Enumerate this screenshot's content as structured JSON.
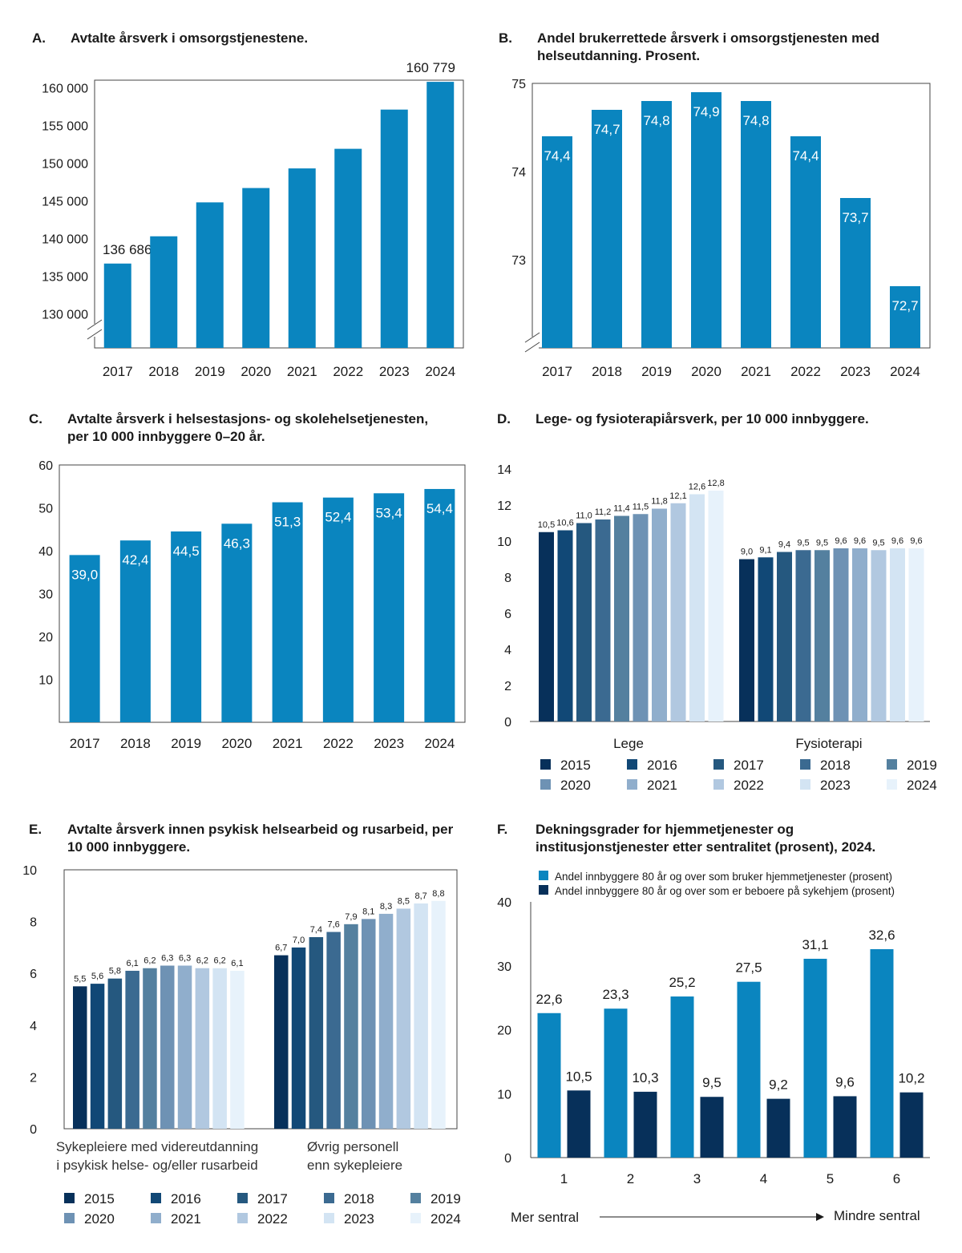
{
  "colors": {
    "main_blue": "#0a85bf",
    "dark_navy": "#07305a",
    "years_palette": [
      "#07305a",
      "#114876",
      "#25587f",
      "#3b6a91",
      "#54809f",
      "#6e92b4",
      "#90aecc",
      "#b1c8e0",
      "#d3e4f3",
      "#e7f2fb"
    ]
  },
  "chart_data": [
    {
      "id": "A",
      "type": "bar",
      "letter": "A.",
      "title": "Avtalte årsverk i omsorgstjenestene.",
      "categories": [
        "2017",
        "2018",
        "2019",
        "2020",
        "2021",
        "2022",
        "2023",
        "2024"
      ],
      "values": [
        136686,
        140300,
        144800,
        146700,
        149300,
        151900,
        157100,
        160779
      ],
      "labels": {
        "0": "136 686",
        "7": "160 779"
      },
      "yticks": [
        "130 000",
        "135 000",
        "140 000",
        "145 000",
        "150 000",
        "155 000",
        "160 000"
      ],
      "ytick_values": [
        130000,
        135000,
        140000,
        145000,
        150000,
        155000,
        160000
      ],
      "ylim": [
        125500,
        161000
      ],
      "axis_break": true
    },
    {
      "id": "B",
      "type": "bar",
      "letter": "B.",
      "title": "Andel  brukerrettede årsverk i omsorgstjenesten med helseutdanning. Prosent.",
      "categories": [
        "2017",
        "2018",
        "2019",
        "2020",
        "2021",
        "2022",
        "2023",
        "2024"
      ],
      "values": [
        74.4,
        74.7,
        74.8,
        74.9,
        74.8,
        74.4,
        73.7,
        72.7
      ],
      "labels": [
        "74,4",
        "74,7",
        "74,8",
        "74,9",
        "74,8",
        "74,4",
        "73,7",
        "72,7"
      ],
      "yticks": [
        "73",
        "74",
        "75"
      ],
      "ytick_values": [
        73,
        74,
        75
      ],
      "ylim": [
        72.0,
        75.0
      ],
      "axis_break": true
    },
    {
      "id": "C",
      "type": "bar",
      "letter": "C.",
      "title": "Avtalte årsverk i helsestasjons- og skolehelsetjenesten, per 10 000 innbyggere 0–20 år.",
      "categories": [
        "2017",
        "2018",
        "2019",
        "2020",
        "2021",
        "2022",
        "2023",
        "2024"
      ],
      "values": [
        39.0,
        42.4,
        44.5,
        46.3,
        51.3,
        52.4,
        53.4,
        54.4
      ],
      "labels": [
        "39,0",
        "42,4",
        "44,5",
        "46,3",
        "51,3",
        "52,4",
        "53,4",
        "54,4"
      ],
      "yticks": [
        "10",
        "20",
        "30",
        "40",
        "50",
        "60"
      ],
      "ytick_values": [
        10,
        20,
        30,
        40,
        50,
        60
      ],
      "ylim": [
        0,
        60
      ]
    },
    {
      "id": "D",
      "type": "bar",
      "letter": "D.",
      "title": "Lege- og fysioterapiårsverk, per 10 000 innbyggere.",
      "groups": [
        "Lege",
        "Fysioterapi"
      ],
      "years": [
        "2015",
        "2016",
        "2017",
        "2018",
        "2019",
        "2020",
        "2021",
        "2022",
        "2023",
        "2024"
      ],
      "series_values": [
        [
          10.5,
          10.6,
          11.0,
          11.2,
          11.4,
          11.5,
          11.8,
          12.1,
          12.6,
          12.8
        ],
        [
          9.0,
          9.1,
          9.4,
          9.5,
          9.5,
          9.6,
          9.6,
          9.5,
          9.6,
          9.6
        ]
      ],
      "series_labels": [
        [
          "10,5",
          "10,6",
          "11,0",
          "11,2",
          "11,4",
          "11,5",
          "11,8",
          "12,1",
          "12,6",
          "12,8"
        ],
        [
          "9,0",
          "9,1",
          "9,4",
          "9,5",
          "9,5",
          "9,6",
          "9,6",
          "9,5",
          "9,6",
          "9,6"
        ]
      ],
      "yticks": [
        "0",
        "2",
        "4",
        "6",
        "8",
        "10",
        "12",
        "14"
      ],
      "ytick_values": [
        0,
        2,
        4,
        6,
        8,
        10,
        12,
        14
      ],
      "ylim": [
        0,
        14
      ]
    },
    {
      "id": "E",
      "type": "bar",
      "letter": "E.",
      "title": "Avtalte årsverk innen psykisk helsearbeid og rusarbeid, per 10 000 innbyggere.",
      "groups": [
        "Sykepleiere med videreutdanning i psykisk helse- og/eller rusarbeid",
        "Øvrig personell enn sykepleiere"
      ],
      "group_lines": [
        [
          "Sykepleiere med videreutdanning",
          "i psykisk helse- og/eller rusarbeid"
        ],
        [
          "Øvrig personell",
          "enn sykepleiere"
        ]
      ],
      "years": [
        "2015",
        "2016",
        "2017",
        "2018",
        "2019",
        "2020",
        "2021",
        "2022",
        "2023",
        "2024"
      ],
      "series_values": [
        [
          5.5,
          5.6,
          5.8,
          6.1,
          6.2,
          6.3,
          6.3,
          6.2,
          6.2,
          6.1
        ],
        [
          6.7,
          7.0,
          7.4,
          7.6,
          7.9,
          8.1,
          8.3,
          8.5,
          8.7,
          8.8
        ]
      ],
      "series_labels": [
        [
          "5,5",
          "5,6",
          "5,8",
          "6,1",
          "6,2",
          "6,3",
          "6,3",
          "6,2",
          "6,2",
          "6,1"
        ],
        [
          "6,7",
          "7,0",
          "7,4",
          "7,6",
          "7,9",
          "8,1",
          "8,3",
          "8,5",
          "8,7",
          "8,8"
        ]
      ],
      "yticks": [
        "0",
        "2",
        "4",
        "6",
        "8",
        "10"
      ],
      "ytick_values": [
        0,
        2,
        4,
        6,
        8,
        10
      ],
      "ylim": [
        0,
        10
      ]
    },
    {
      "id": "F",
      "type": "bar",
      "letter": "F.",
      "title": "Dekningsgrader for hjemmetjenester og institusjonstjenester etter sentralitet (prosent), 2024.",
      "categories": [
        "1",
        "2",
        "3",
        "4",
        "5",
        "6"
      ],
      "series": [
        {
          "name": "Andel innbyggere 80 år og over som bruker hjemmetjenester (prosent)",
          "values": [
            22.6,
            23.3,
            25.2,
            27.5,
            31.1,
            32.6
          ],
          "labels": [
            "22,6",
            "23,3",
            "25,2",
            "27,5",
            "31,1",
            "32,6"
          ]
        },
        {
          "name": "Andel innbyggere 80 år og over som er beboere på sykehjem (prosent)",
          "values": [
            10.5,
            10.3,
            9.5,
            9.2,
            9.6,
            10.2
          ],
          "labels": [
            "10,5",
            "10,3",
            "9,5",
            "9,2",
            "9,6",
            "10,2"
          ]
        }
      ],
      "yticks": [
        "0",
        "10",
        "20",
        "30",
        "40"
      ],
      "ytick_values": [
        0,
        10,
        20,
        30,
        40
      ],
      "ylim": [
        0,
        40
      ],
      "axis_left_label": "Mer sentral",
      "axis_right_label": "Mindre sentral"
    }
  ]
}
